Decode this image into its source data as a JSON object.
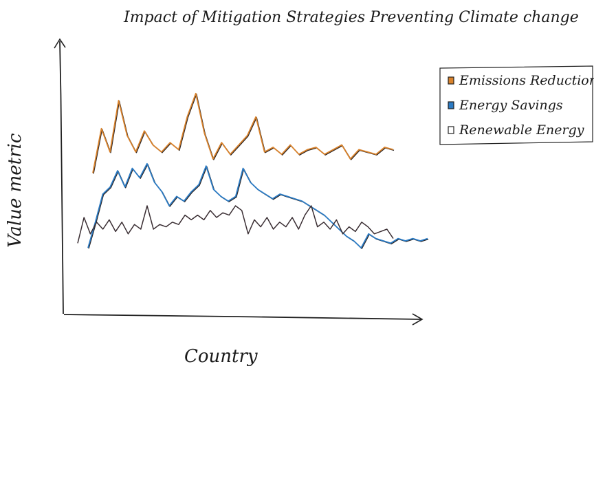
{
  "chart_data": {
    "type": "line",
    "title": "Impact of Mitigation Strategies Preventing Climate change",
    "xlabel": "Country",
    "ylabel": "Value metric",
    "legend_position": "top-right",
    "ylim": [
      0,
      100
    ],
    "grid": false,
    "series": [
      {
        "name": "Emissions Reduction",
        "color": "#d9822b",
        "x": [
          0,
          1,
          2,
          3,
          4,
          5,
          6,
          7,
          8,
          9,
          10,
          11,
          12,
          13,
          14,
          15,
          16,
          17,
          18,
          19,
          20,
          21,
          22,
          23,
          24,
          25,
          26,
          27,
          28,
          29,
          30,
          31,
          32,
          33,
          34,
          35
        ],
        "values": [
          54,
          73,
          63,
          85,
          70,
          63,
          72,
          66,
          63,
          67,
          64,
          78,
          88,
          71,
          60,
          67,
          62,
          66,
          70,
          78,
          63,
          65,
          62,
          66,
          62,
          64,
          65,
          62,
          64,
          66,
          60,
          64,
          63,
          62,
          65,
          64
        ]
      },
      {
        "name": "Energy Savings",
        "color": "#2b7bc4",
        "x": [
          0,
          1,
          2,
          3,
          4,
          5,
          6,
          7,
          8,
          9,
          10,
          11,
          12,
          13,
          14,
          15,
          16,
          17,
          18,
          19,
          20,
          21,
          22,
          23,
          24,
          25,
          26,
          27,
          28,
          29,
          30,
          31,
          32,
          33,
          34,
          35,
          36,
          37,
          38,
          39,
          40,
          41,
          42,
          43,
          44,
          45,
          46
        ],
        "values": [
          22,
          33,
          45,
          48,
          55,
          48,
          56,
          52,
          58,
          50,
          46,
          40,
          44,
          42,
          46,
          49,
          57,
          47,
          44,
          42,
          44,
          56,
          50,
          47,
          45,
          43,
          45,
          44,
          43,
          42,
          40,
          38,
          36,
          33,
          30,
          27,
          25,
          22,
          28,
          26,
          25,
          24,
          26,
          25,
          26,
          25,
          26
        ]
      },
      {
        "name": "Renewable Energy",
        "color": "#3a2e33",
        "x": [
          0,
          1,
          2,
          3,
          4,
          5,
          6,
          7,
          8,
          9,
          10,
          11,
          12,
          13,
          14,
          15,
          16,
          17,
          18,
          19,
          20,
          21,
          22,
          23,
          24,
          25,
          26,
          27,
          28,
          29,
          30,
          31,
          32,
          33,
          34,
          35,
          36,
          37,
          38,
          39,
          40,
          41,
          42,
          43,
          44,
          45,
          46,
          47,
          48,
          49,
          50
        ],
        "values": [
          24,
          35,
          28,
          33,
          30,
          34,
          29,
          33,
          28,
          32,
          30,
          40,
          30,
          32,
          31,
          33,
          32,
          36,
          34,
          36,
          34,
          38,
          35,
          37,
          36,
          40,
          38,
          28,
          34,
          31,
          35,
          30,
          33,
          31,
          35,
          30,
          36,
          40,
          31,
          33,
          30,
          34,
          28,
          31,
          29,
          33,
          31,
          28,
          29,
          30,
          26
        ]
      }
    ]
  }
}
